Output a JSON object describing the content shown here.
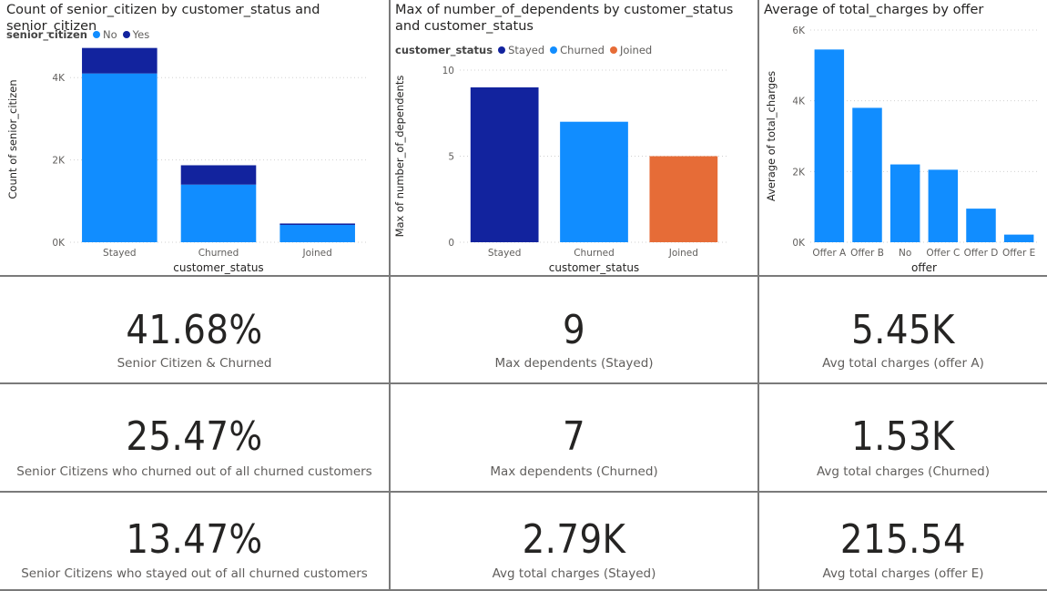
{
  "colors": {
    "dark_blue": "#12239E",
    "light_blue": "#118DFF",
    "orange": "#E66C37",
    "grid": "#d0d0d0",
    "axis_text": "#605e5c"
  },
  "chart_data": [
    {
      "type": "bar",
      "stacked": true,
      "title": "Count of senior_citizen by customer_status and senior_citizen",
      "legend_title": "senior_citizen",
      "legend_position": "top-left",
      "categories": [
        "Stayed",
        "Churned",
        "Joined"
      ],
      "series": [
        {
          "name": "No",
          "color": "#118DFF",
          "values": [
            4100,
            1400,
            420
          ]
        },
        {
          "name": "Yes",
          "color": "#12239E",
          "values": [
            620,
            470,
            35
          ]
        }
      ],
      "xlabel": "customer_status",
      "ylabel": "Count of senior_citizen",
      "ylim": [
        0,
        5000
      ],
      "yticks": [
        0,
        2000,
        4000
      ],
      "ytick_labels": [
        "0K",
        "2K",
        "4K"
      ],
      "grid": true
    },
    {
      "type": "bar",
      "title": "Max of number_of_dependents by customer_status and customer_status",
      "legend_title": "customer_status",
      "legend_position": "top-left",
      "categories": [
        "Stayed",
        "Churned",
        "Joined"
      ],
      "series": [
        {
          "name": "Stayed",
          "color": "#12239E"
        },
        {
          "name": "Churned",
          "color": "#118DFF"
        },
        {
          "name": "Joined",
          "color": "#E66C37"
        }
      ],
      "values": [
        9,
        7,
        5
      ],
      "bar_colors": [
        "#12239E",
        "#118DFF",
        "#E66C37"
      ],
      "xlabel": "customer_status",
      "ylabel": "Max of number_of_dependents",
      "ylim": [
        0,
        10
      ],
      "yticks": [
        0,
        5,
        10
      ],
      "ytick_labels": [
        "0",
        "5",
        "10"
      ],
      "grid": true
    },
    {
      "type": "bar",
      "title": "Average of total_charges by offer",
      "categories": [
        "Offer A",
        "Offer B",
        "No",
        "Offer C",
        "Offer D",
        "Offer E"
      ],
      "values": [
        5450,
        3800,
        2200,
        2050,
        950,
        215.54
      ],
      "color": "#118DFF",
      "xlabel": "offer",
      "ylabel": "Average of total_charges",
      "ylim": [
        0,
        6000
      ],
      "yticks": [
        0,
        2000,
        4000,
        6000
      ],
      "ytick_labels": [
        "0K",
        "2K",
        "4K",
        "6K"
      ],
      "grid": true
    }
  ],
  "kpis": [
    {
      "value": "41.68%",
      "label": "Senior Citizen & Churned"
    },
    {
      "value": "9",
      "label": "Max dependents (Stayed)"
    },
    {
      "value": "5.45K",
      "label": "Avg total charges (offer A)"
    },
    {
      "value": "25.47%",
      "label": "Senior Citizens who churned out of all churned customers"
    },
    {
      "value": "7",
      "label": "Max dependents (Churned)"
    },
    {
      "value": "1.53K",
      "label": "Avg total charges (Churned)"
    },
    {
      "value": "13.47%",
      "label": "Senior Citizens who stayed out of all churned customers"
    },
    {
      "value": "2.79K",
      "label": "Avg total charges (Stayed)"
    },
    {
      "value": "215.54",
      "label": "Avg total charges (offer E)"
    }
  ]
}
